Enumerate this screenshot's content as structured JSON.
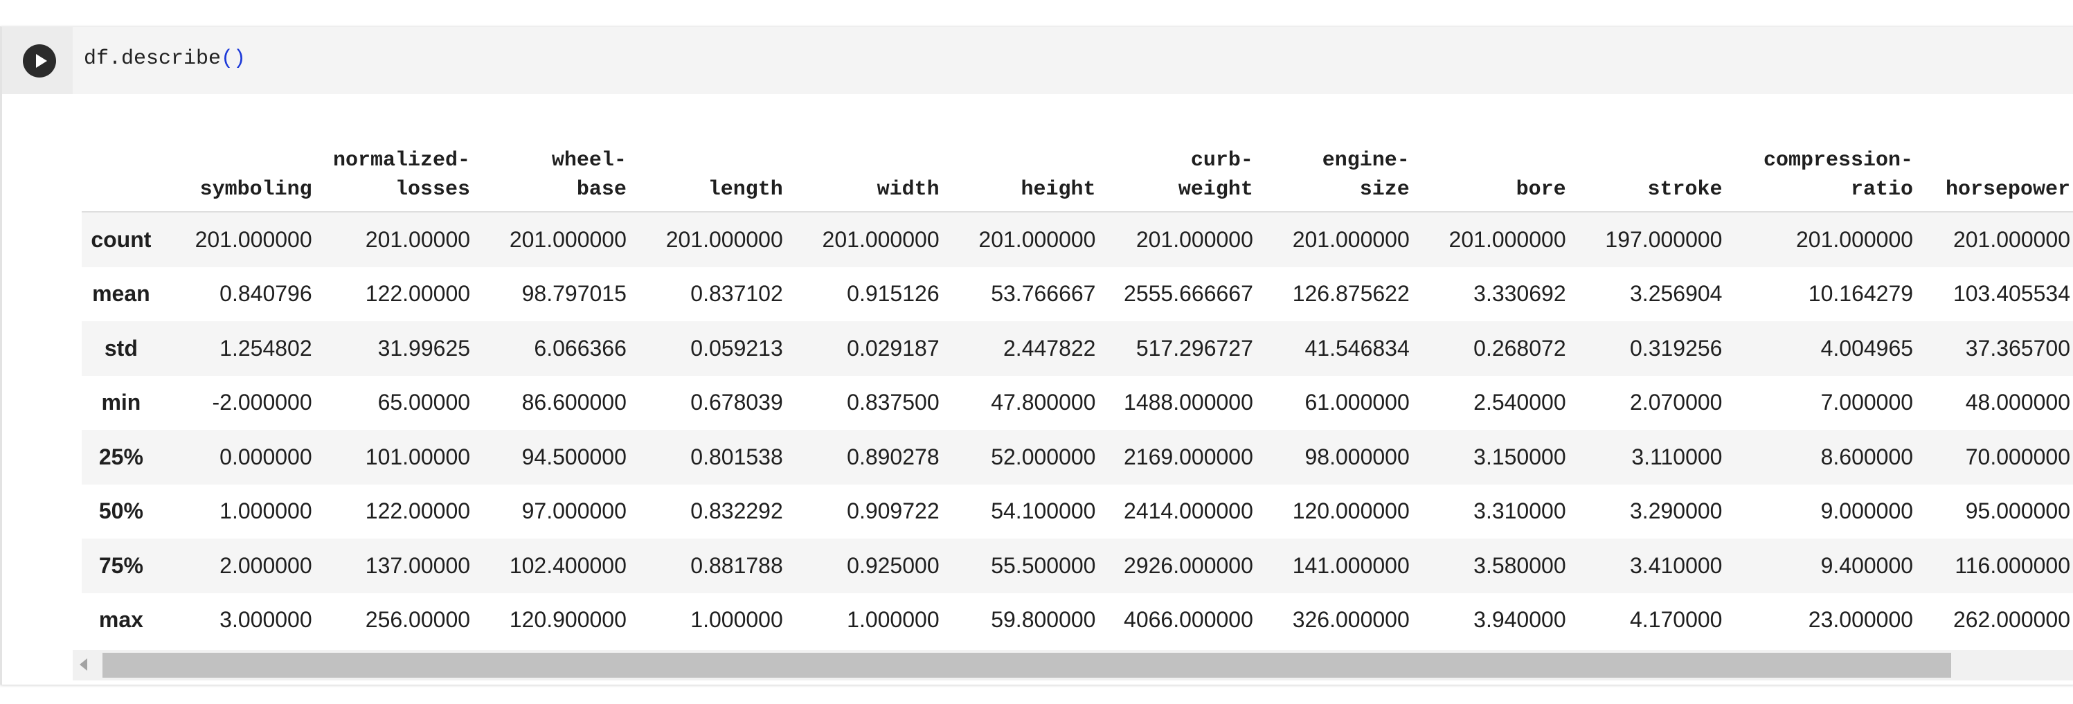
{
  "code_cell": {
    "code_text": "df.describe",
    "code_parens": "()",
    "run_icon": "play-icon"
  },
  "table": {
    "columns": [
      [
        "symboling"
      ],
      [
        "normalized-",
        "losses"
      ],
      [
        "wheel-",
        "base"
      ],
      [
        "length"
      ],
      [
        "width"
      ],
      [
        "height"
      ],
      [
        "curb-",
        "weight"
      ],
      [
        "engine-",
        "size"
      ],
      [
        "bore"
      ],
      [
        "stroke"
      ],
      [
        "compression-",
        "ratio"
      ],
      [
        "horsepower"
      ]
    ],
    "rows": [
      {
        "label": "count",
        "values": [
          "201.000000",
          "201.00000",
          "201.000000",
          "201.000000",
          "201.000000",
          "201.000000",
          "201.000000",
          "201.000000",
          "201.000000",
          "197.000000",
          "201.000000",
          "201.000000"
        ]
      },
      {
        "label": "mean",
        "values": [
          "0.840796",
          "122.00000",
          "98.797015",
          "0.837102",
          "0.915126",
          "53.766667",
          "2555.666667",
          "126.875622",
          "3.330692",
          "3.256904",
          "10.164279",
          "103.405534"
        ]
      },
      {
        "label": "std",
        "values": [
          "1.254802",
          "31.99625",
          "6.066366",
          "0.059213",
          "0.029187",
          "2.447822",
          "517.296727",
          "41.546834",
          "0.268072",
          "0.319256",
          "4.004965",
          "37.365700"
        ]
      },
      {
        "label": "min",
        "values": [
          "-2.000000",
          "65.00000",
          "86.600000",
          "0.678039",
          "0.837500",
          "47.800000",
          "1488.000000",
          "61.000000",
          "2.540000",
          "2.070000",
          "7.000000",
          "48.000000"
        ]
      },
      {
        "label": "25%",
        "values": [
          "0.000000",
          "101.00000",
          "94.500000",
          "0.801538",
          "0.890278",
          "52.000000",
          "2169.000000",
          "98.000000",
          "3.150000",
          "3.110000",
          "8.600000",
          "70.000000"
        ]
      },
      {
        "label": "50%",
        "values": [
          "1.000000",
          "122.00000",
          "97.000000",
          "0.832292",
          "0.909722",
          "54.100000",
          "2414.000000",
          "120.000000",
          "3.310000",
          "3.290000",
          "9.000000",
          "95.000000"
        ]
      },
      {
        "label": "75%",
        "values": [
          "2.000000",
          "137.00000",
          "102.400000",
          "0.881788",
          "0.925000",
          "55.500000",
          "2926.000000",
          "141.000000",
          "3.580000",
          "3.410000",
          "9.400000",
          "116.000000"
        ]
      },
      {
        "label": "max",
        "values": [
          "3.000000",
          "256.00000",
          "120.900000",
          "1.000000",
          "1.000000",
          "59.800000",
          "4066.000000",
          "326.000000",
          "3.940000",
          "4.170000",
          "23.000000",
          "262.000000"
        ]
      }
    ]
  },
  "scrollbar": {
    "left_arrow_icon": "chevron-left-icon"
  }
}
